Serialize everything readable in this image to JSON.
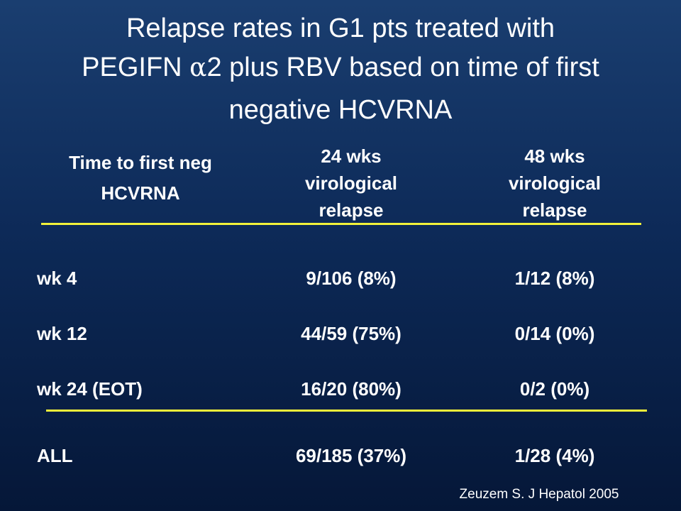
{
  "slide": {
    "title_line1": "Relapse rates in G1 pts treated with",
    "title_line2_pre": "PEGIFN ",
    "title_line2_alpha": "α",
    "title_line2_post": "2 plus RBV based on time of first",
    "title_line3": "negative HCVRNA"
  },
  "table": {
    "headers": {
      "col1_line1": "Time to first neg",
      "col1_line2": "HCVRNA",
      "col2_line1": "24 wks",
      "col2_line2": "virological",
      "col2_line3": "relapse",
      "col3_line1": "48 wks",
      "col3_line2": "virological",
      "col3_line3": "relapse"
    },
    "rows": [
      {
        "label": "wk 4",
        "wk24": "9/106 (8%)",
        "wk48": "1/12 (8%)"
      },
      {
        "label": "wk 12",
        "wk24": "44/59 (75%)",
        "wk48": "0/14 (0%)"
      },
      {
        "label": "wk 24 (EOT)",
        "wk24": "16/20 (80%)",
        "wk48": "0/2 (0%)"
      }
    ],
    "total": {
      "label": "ALL",
      "wk24": "69/185 (37%)",
      "wk48": "1/28 (4%)"
    }
  },
  "source": "Zeuzem S. J Hepatol 2005",
  "colors": {
    "background_top": "#1a3e70",
    "background_bottom": "#051738",
    "rule": "#f2f23a",
    "text": "#ffffff"
  }
}
